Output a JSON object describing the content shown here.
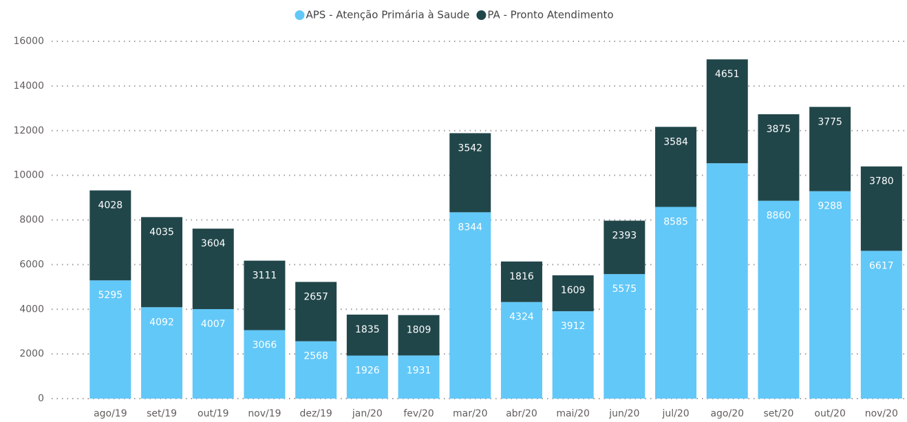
{
  "chart_data": {
    "type": "stacked-bar",
    "categories": [
      "ago/19",
      "set/19",
      "out/19",
      "nov/19",
      "dez/19",
      "jan/20",
      "fev/20",
      "mar/20",
      "abr/20",
      "mai/20",
      "jun/20",
      "jul/20",
      "ago/20",
      "set/20",
      "out/20",
      "nov/20"
    ],
    "series": [
      {
        "name": "APS - Atenção Primária à Saude",
        "color": "#62c8f8",
        "values": [
          5295,
          4092,
          4007,
          3066,
          2568,
          1926,
          1931,
          8344,
          4324,
          3912,
          5575,
          8585,
          10540,
          8860,
          9288,
          6617
        ],
        "value_labels": [
          "5295",
          "4092",
          "4007",
          "3066",
          "2568",
          "1926",
          "1931",
          "8344",
          "4324",
          "3912",
          "5575",
          "8585",
          null,
          "8860",
          "9288",
          "6617"
        ]
      },
      {
        "name": "PA - Pronto Atendimento",
        "color": "#21464a",
        "values": [
          4028,
          4035,
          3604,
          3111,
          2657,
          1835,
          1809,
          3542,
          1816,
          1609,
          2393,
          3584,
          4651,
          3875,
          3775,
          3780
        ]
      }
    ],
    "ylim": [
      0,
      16000
    ],
    "yticks": [
      0,
      2000,
      4000,
      6000,
      8000,
      10000,
      12000,
      14000,
      16000
    ],
    "grid": true,
    "legend": "top"
  }
}
